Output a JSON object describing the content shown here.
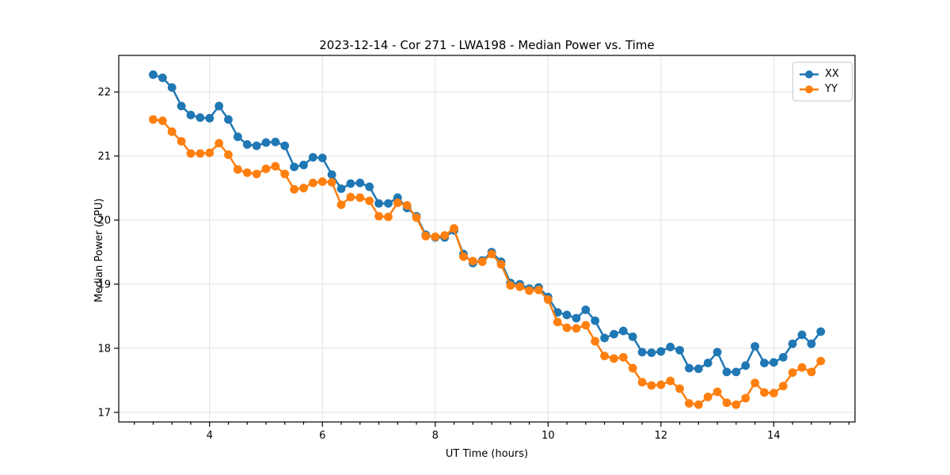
{
  "chart_data": {
    "type": "line",
    "title": "2023-12-14 - Cor 271 - LWA198 - Median Power vs. Time",
    "xlabel": "UT Time (hours)",
    "ylabel": "Median Power (CPU)",
    "xlim": [
      2.39,
      15.44
    ],
    "ylim": [
      16.85,
      22.57
    ],
    "xticks": [
      4,
      6,
      8,
      10,
      12,
      14
    ],
    "yticks": [
      17,
      18,
      19,
      20,
      21,
      22
    ],
    "x_minor_step": 0.33333,
    "grid": "major-only",
    "grid_color": "#e2e2e2",
    "spine_color": "#000000",
    "legend_position": "upper right",
    "x": [
      3.0,
      3.167,
      3.333,
      3.5,
      3.667,
      3.833,
      4.0,
      4.167,
      4.333,
      4.5,
      4.667,
      4.833,
      5.0,
      5.167,
      5.333,
      5.5,
      5.667,
      5.833,
      6.0,
      6.167,
      6.333,
      6.5,
      6.667,
      6.833,
      7.0,
      7.167,
      7.333,
      7.5,
      7.667,
      7.833,
      8.0,
      8.167,
      8.333,
      8.5,
      8.667,
      8.833,
      9.0,
      9.167,
      9.333,
      9.5,
      9.667,
      9.833,
      10.0,
      10.167,
      10.333,
      10.5,
      10.667,
      10.833,
      11.0,
      11.167,
      11.333,
      11.5,
      11.667,
      11.833,
      12.0,
      12.167,
      12.333,
      12.5,
      12.667,
      12.833,
      13.0,
      13.167,
      13.333,
      13.5,
      13.667,
      13.833,
      14.0,
      14.167,
      14.333,
      14.5,
      14.667,
      14.833
    ],
    "series": [
      {
        "name": "XX",
        "color": "#1f77b4",
        "values": [
          22.27,
          22.22,
          22.07,
          21.78,
          21.64,
          21.6,
          21.59,
          21.78,
          21.57,
          21.3,
          21.18,
          21.16,
          21.21,
          21.22,
          21.16,
          20.83,
          20.86,
          20.98,
          20.97,
          20.71,
          20.49,
          20.57,
          20.58,
          20.52,
          20.26,
          20.26,
          20.35,
          20.19,
          20.06,
          19.77,
          19.73,
          19.73,
          19.84,
          19.47,
          19.33,
          19.37,
          19.5,
          19.35,
          19.02,
          19.0,
          18.93,
          18.95,
          18.8,
          18.56,
          18.52,
          18.47,
          18.6,
          18.43,
          18.16,
          18.22,
          18.27,
          18.18,
          17.94,
          17.93,
          17.95,
          18.02,
          17.97,
          17.69,
          17.68,
          17.77,
          17.94,
          17.63,
          17.63,
          17.73,
          18.03,
          17.77,
          17.78,
          17.86,
          18.07,
          18.21,
          18.07,
          18.26
        ]
      },
      {
        "name": "YY",
        "color": "#ff7f0e",
        "values": [
          21.57,
          21.55,
          21.38,
          21.23,
          21.04,
          21.04,
          21.05,
          21.2,
          21.02,
          20.79,
          20.74,
          20.72,
          20.8,
          20.84,
          20.72,
          20.48,
          20.5,
          20.58,
          20.6,
          20.59,
          20.24,
          20.36,
          20.35,
          20.3,
          20.06,
          20.05,
          20.27,
          20.23,
          20.04,
          19.75,
          19.74,
          19.76,
          19.87,
          19.43,
          19.36,
          19.35,
          19.47,
          19.31,
          18.98,
          18.96,
          18.9,
          18.91,
          18.76,
          18.41,
          18.32,
          18.31,
          18.36,
          18.11,
          17.88,
          17.84,
          17.86,
          17.69,
          17.47,
          17.42,
          17.43,
          17.49,
          17.37,
          17.14,
          17.12,
          17.24,
          17.32,
          17.15,
          17.12,
          17.22,
          17.46,
          17.31,
          17.3,
          17.41,
          17.62,
          17.7,
          17.63,
          17.8
        ]
      }
    ]
  }
}
